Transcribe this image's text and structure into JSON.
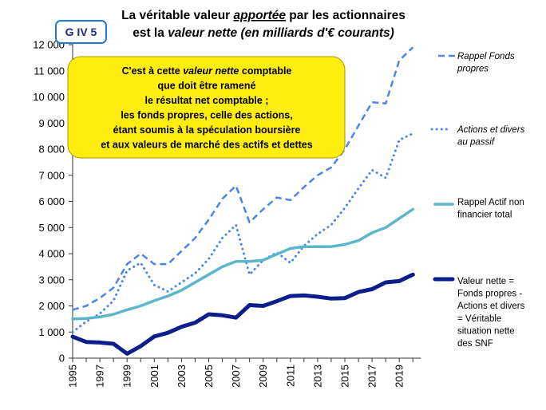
{
  "badge": "G IV 5",
  "title": {
    "line1": [
      {
        "t": "La véritable valeur ",
        "i": false,
        "u": false
      },
      {
        "t": "apportée",
        "i": true,
        "u": true
      },
      {
        "t": " par les actionnaires",
        "i": false,
        "u": false
      }
    ],
    "line2": [
      {
        "t": "est la ",
        "i": false,
        "u": false
      },
      {
        "t": "valeur nette (en milliards d'€ courants)",
        "i": true,
        "u": false
      }
    ]
  },
  "annotation": [
    [
      {
        "t": "C'est à cette ",
        "i": false
      },
      {
        "t": "valeur nette",
        "i": true
      },
      {
        "t": " comptable",
        "i": false
      }
    ],
    [
      {
        "t": "que doit être ramené",
        "i": false
      }
    ],
    [
      {
        "t": "le résultat net comptable ;",
        "i": false
      }
    ],
    [
      {
        "t": "les fonds propres, celle  des actions,",
        "i": false
      }
    ],
    [
      {
        "t": "étant soumis à la spéculation boursière",
        "i": false
      }
    ],
    [
      {
        "t": "et aux valeurs de marché des actifs et dettes",
        "i": false
      }
    ]
  ],
  "colors": {
    "fonds_propres": "#4a86e8",
    "actions": "#4a86e8",
    "actif": "#5ab6c8",
    "valeur_nette": "#0c1e8c",
    "annotation_fill": "#ffee10",
    "badge_border": "#1f7ad8",
    "badge_fill": "#ffffff"
  },
  "chart_data": {
    "type": "line",
    "x": [
      1995,
      1996,
      1997,
      1998,
      1999,
      2000,
      2001,
      2002,
      2003,
      2004,
      2005,
      2006,
      2007,
      2008,
      2009,
      2010,
      2011,
      2012,
      2013,
      2014,
      2015,
      2016,
      2017,
      2018,
      2019,
      2020
    ],
    "x_tick_labels": [
      "1995",
      "1997",
      "1999",
      "2001",
      "2003",
      "2005",
      "2007",
      "2009",
      "2011",
      "2013",
      "2015",
      "2017",
      "2019"
    ],
    "ylim": [
      0,
      12000
    ],
    "y_ticks": [
      0,
      1000,
      2000,
      3000,
      4000,
      5000,
      6000,
      7000,
      8000,
      9000,
      10000,
      11000,
      12000
    ],
    "y_tick_labels": [
      "0",
      "1 000",
      "2 000",
      "3 000",
      "4 000",
      "5 000",
      "6 000",
      "7 000",
      "8 000",
      "9 000",
      "10 000",
      "11 000",
      "12 000"
    ],
    "grid": false,
    "series": [
      {
        "key": "fonds_propres",
        "style": "dashed",
        "name_lines": [
          "Rappel Fonds",
          "propres"
        ],
        "name_italic": true,
        "values": [
          1850,
          2000,
          2300,
          2700,
          3600,
          4000,
          3600,
          3600,
          4100,
          4600,
          5300,
          6100,
          6600,
          5200,
          5700,
          6150,
          6050,
          6550,
          7000,
          7300,
          8000,
          8900,
          9800,
          9750,
          11400,
          11900
        ]
      },
      {
        "key": "actions",
        "style": "dotted",
        "name_lines": [
          "Actions et divers",
          "au passif"
        ],
        "name_italic": true,
        "values": [
          1000,
          1400,
          1700,
          2200,
          3350,
          3650,
          2800,
          2550,
          2900,
          3250,
          3800,
          4600,
          5100,
          3200,
          3750,
          4050,
          3650,
          4300,
          4750,
          5100,
          5750,
          6500,
          7200,
          6900,
          8350,
          8600
        ]
      },
      {
        "key": "actif",
        "style": "solid",
        "name_lines": [
          "Rappel Actif non",
          "financier total"
        ],
        "name_italic": false,
        "values": [
          1500,
          1520,
          1580,
          1680,
          1850,
          2000,
          2200,
          2380,
          2600,
          2900,
          3200,
          3500,
          3700,
          3700,
          3750,
          3980,
          4200,
          4270,
          4270,
          4270,
          4350,
          4500,
          4800,
          5000,
          5350,
          5700
        ]
      },
      {
        "key": "valeur_nette",
        "style": "solid-thick",
        "name_lines": [
          "Valeur nette  =",
          "Fonds propres -",
          "Actions et divers",
          "= Véritable",
          "situation nette",
          "des SNF"
        ],
        "name_italic": false,
        "values": [
          820,
          620,
          600,
          550,
          170,
          460,
          830,
          970,
          1200,
          1360,
          1680,
          1640,
          1550,
          2030,
          2000,
          2180,
          2380,
          2400,
          2350,
          2280,
          2300,
          2530,
          2640,
          2900,
          2950,
          3200
        ]
      }
    ]
  }
}
